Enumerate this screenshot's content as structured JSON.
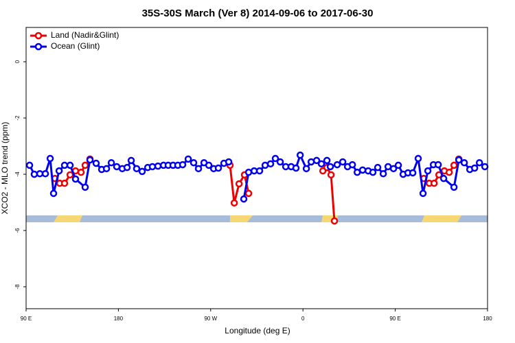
{
  "chart_data": {
    "type": "line",
    "title": "35S-30S March (Ver 8)   2014-09-06 to 2017-06-30",
    "x_label": "Longitude (deg E)",
    "y_label": "XCO2 - MLO trend (ppm)",
    "xlim": [
      90,
      540
    ],
    "ylim": [
      -8.78,
      1.22
    ],
    "xticks": [
      {
        "value": 90,
        "label": "90 E"
      },
      {
        "value": 180,
        "label": "180"
      },
      {
        "value": 270,
        "label": "90 W"
      },
      {
        "value": 360,
        "label": "0"
      },
      {
        "value": 450,
        "label": "90 E"
      },
      {
        "value": 540,
        "label": "180"
      }
    ],
    "yticks": [
      0,
      -2,
      -4,
      -6,
      -8
    ],
    "legend": "top-left",
    "series": [
      {
        "name": "Land (Nadir&Glint)",
        "color": "#ee0000",
        "x": [
          118.1,
          122.8,
          127.5,
          132.9,
          138.2,
          143.6,
          147.6,
          152.3,
          null,
          288.9,
          293.0,
          297.7,
          303.0,
          307.0,
          null,
          379.4,
          383.4,
          387.4,
          390.7,
          null,
          477.8,
          483.2,
          487.9,
          492.6,
          497.9,
          502.6,
          507.3,
          512.0
        ],
        "values": [
          -4.15,
          -4.32,
          -4.32,
          -4.02,
          -3.88,
          -3.93,
          -3.68,
          -3.46,
          null,
          -3.68,
          -5.02,
          -4.34,
          -4.02,
          -4.68,
          null,
          -3.88,
          -3.76,
          -4.02,
          -5.66,
          null,
          -4.15,
          -4.32,
          -4.32,
          -4.02,
          -3.88,
          -3.93,
          -3.68,
          -3.46
        ]
      },
      {
        "name": "Ocean (Glint)",
        "color": "#0000ee",
        "x": [
          93.4,
          98.0,
          103.4,
          108.8,
          113.5,
          116.8,
          122.2,
          127.5,
          132.9,
          138.2,
          147.6,
          152.3,
          158.3,
          163.7,
          168.4,
          173.1,
          178.4,
          183.8,
          188.5,
          192.5,
          197.8,
          203.2,
          208.6,
          213.2,
          218.6,
          224.0,
          228.6,
          233.3,
          238.0,
          242.7,
          248.1,
          253.4,
          258.1,
          263.5,
          268.2,
          272.9,
          277.5,
          282.9,
          287.6,
          null,
          302.3,
          307.0,
          312.4,
          317.7,
          323.1,
          328.4,
          333.1,
          337.8,
          343.2,
          348.5,
          353.2,
          357.3,
          363.3,
          368.0,
          373.3,
          378.0,
          383.4,
          386.7,
          393.4,
          398.8,
          403.5,
          408.2,
          412.9,
          418.2,
          423.6,
          428.2,
          432.9,
          438.3,
          443.0,
          448.3,
          453.0,
          457.7,
          462.4,
          467.1,
          472.4,
          477.1,
          481.8,
          487.2,
          491.9,
          497.2,
          507.3,
          512.0,
          517.3,
          522.7,
          527.4,
          532.1,
          537.4
        ],
        "values": [
          -3.68,
          -4.0,
          -3.98,
          -3.98,
          -3.44,
          -4.68,
          -3.88,
          -3.68,
          -3.68,
          -4.17,
          -4.46,
          -3.49,
          -3.61,
          -3.83,
          -3.8,
          -3.59,
          -3.73,
          -3.8,
          -3.76,
          -3.51,
          -3.8,
          -3.9,
          -3.76,
          -3.73,
          -3.71,
          -3.68,
          -3.68,
          -3.68,
          -3.68,
          -3.66,
          -3.46,
          -3.59,
          -3.8,
          -3.59,
          -3.68,
          -3.8,
          -3.78,
          -3.61,
          -3.56,
          null,
          -4.88,
          -3.93,
          -3.88,
          -3.88,
          -3.68,
          -3.63,
          -3.44,
          -3.56,
          -3.73,
          -3.73,
          -3.78,
          -3.32,
          -3.8,
          -3.56,
          -3.51,
          -3.63,
          -3.51,
          -3.73,
          -3.66,
          -3.56,
          -3.73,
          -3.66,
          -3.93,
          -3.85,
          -3.88,
          -3.93,
          -3.76,
          -3.98,
          -3.73,
          -3.8,
          -3.68,
          -4.0,
          -3.95,
          -3.95,
          -3.44,
          -4.68,
          -3.88,
          -3.66,
          -3.66,
          -4.15,
          -4.46,
          -3.49,
          -3.59,
          -3.83,
          -3.78,
          -3.59,
          -3.73
        ]
      }
    ]
  }
}
